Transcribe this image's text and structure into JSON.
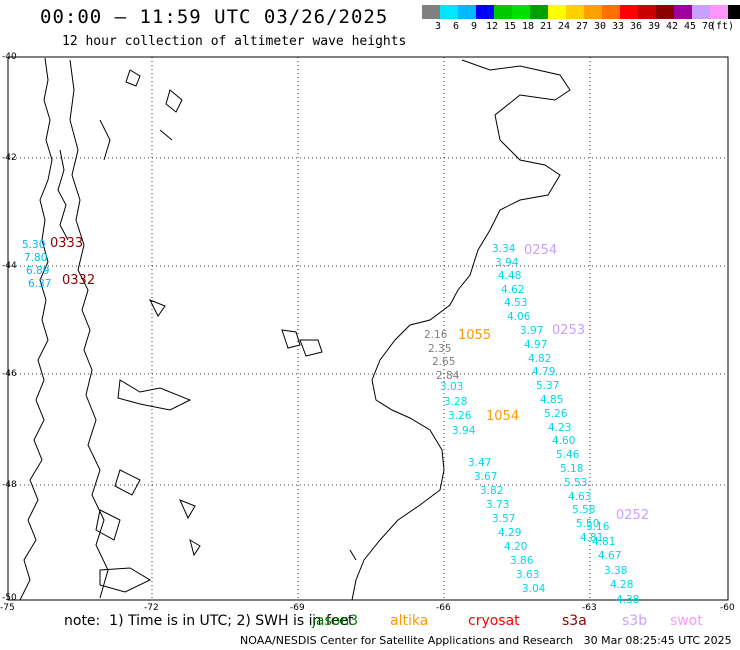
{
  "title": "00:00 – 11:59 UTC 03/26/2025",
  "subtitle": "12 hour collection of altimeter wave heights",
  "legend": {
    "colors": [
      "#808080",
      "#00e5ff",
      "#00b8ff",
      "#0000ff",
      "#00c800",
      "#00e000",
      "#00a000",
      "#ffff00",
      "#ffd000",
      "#ffa000",
      "#ff7000",
      "#ff0000",
      "#c80000",
      "#8c0000",
      "#a000a0",
      "#c8a0ff",
      "#ff96ff",
      "#000000"
    ],
    "ticks": [
      "3",
      "6",
      "9",
      "12",
      "15",
      "18",
      "21",
      "24",
      "27",
      "30",
      "33",
      "36",
      "39",
      "42",
      "45",
      "70"
    ],
    "unit": "(ft)"
  },
  "axes": {
    "lat_labels": [
      "-40",
      "-42",
      "-44",
      "-46",
      "-48",
      "-50"
    ],
    "lon_labels": [
      "-75",
      "-72",
      "-69",
      "-66",
      "-63",
      "-60"
    ]
  },
  "passes": [
    {
      "id": "0333",
      "color": "#8c0000",
      "values": [
        {
          "v": "5.30",
          "c": "#00b8ff"
        },
        {
          "v": "7.80",
          "c": "#00b8ff"
        },
        {
          "v": "6.89",
          "c": "#00b8ff"
        },
        {
          "v": "6.37",
          "c": "#00b8ff"
        }
      ]
    },
    {
      "id": "0332",
      "color": "#8c0000",
      "values": []
    },
    {
      "id": "0254",
      "color": "#c8a0ff",
      "values": [
        {
          "v": "3.34",
          "c": "#00d8e8"
        },
        {
          "v": "3.94",
          "c": "#00d8e8"
        },
        {
          "v": "4.48",
          "c": "#00d8e8"
        },
        {
          "v": "4.62",
          "c": "#00d8e8"
        },
        {
          "v": "4.53",
          "c": "#00d8e8"
        },
        {
          "v": "4.06",
          "c": "#00d8e8"
        }
      ]
    },
    {
      "id": "1055",
      "color": "#ff9900",
      "values": [
        {
          "v": "2.16",
          "c": "#808080"
        },
        {
          "v": "2.35",
          "c": "#808080"
        },
        {
          "v": "2.65",
          "c": "#808080"
        },
        {
          "v": "2.84",
          "c": "#808080"
        }
      ]
    },
    {
      "id": "0253",
      "color": "#c8a0ff",
      "values": [
        {
          "v": "3.97",
          "c": "#00d8e8"
        },
        {
          "v": "4.97",
          "c": "#00d8e8"
        },
        {
          "v": "4.82",
          "c": "#00d8e8"
        },
        {
          "v": "4.79",
          "c": "#00d8e8"
        },
        {
          "v": "5.37",
          "c": "#00d8e8"
        },
        {
          "v": "4.85",
          "c": "#00d8e8"
        },
        {
          "v": "5.26",
          "c": "#00d8e8"
        },
        {
          "v": "4.23",
          "c": "#00d8e8"
        },
        {
          "v": "4.60",
          "c": "#00d8e8"
        },
        {
          "v": "5.46",
          "c": "#00d8e8"
        },
        {
          "v": "5.18",
          "c": "#00d8e8"
        },
        {
          "v": "5.53",
          "c": "#00d8e8"
        },
        {
          "v": "4.63",
          "c": "#00d8e8"
        },
        {
          "v": "5.58",
          "c": "#00d8e8"
        },
        {
          "v": "5.50",
          "c": "#00d8e8"
        },
        {
          "v": "4.81",
          "c": "#00d8e8"
        }
      ]
    },
    {
      "id": "1054",
      "color": "#ff9900",
      "values": [
        {
          "v": "3.03",
          "c": "#00d8e8"
        },
        {
          "v": "3.28",
          "c": "#00d8e8"
        },
        {
          "v": "3.26",
          "c": "#00d8e8"
        },
        {
          "v": "3.94",
          "c": "#00d8e8"
        }
      ]
    },
    {
      "id": "0252",
      "color": "#c8a0ff",
      "values": [
        {
          "v": "5.16",
          "c": "#00d8e8"
        },
        {
          "v": "4.81",
          "c": "#00d8e8"
        },
        {
          "v": "4.67",
          "c": "#00d8e8"
        },
        {
          "v": "3.38",
          "c": "#00d8e8"
        },
        {
          "v": "4.28",
          "c": "#00d8e8"
        },
        {
          "v": "4.38",
          "c": "#00d8e8"
        }
      ]
    },
    {
      "id": "",
      "color": "#000000",
      "values": [
        {
          "v": "3.47",
          "c": "#00d8e8"
        },
        {
          "v": "3.67",
          "c": "#00d8e8"
        },
        {
          "v": "3.82",
          "c": "#00d8e8"
        },
        {
          "v": "3.73",
          "c": "#00d8e8"
        },
        {
          "v": "3.57",
          "c": "#00d8e8"
        },
        {
          "v": "4.29",
          "c": "#00d8e8"
        },
        {
          "v": "4.20",
          "c": "#00d8e8"
        },
        {
          "v": "3.86",
          "c": "#00d8e8"
        },
        {
          "v": "3.63",
          "c": "#00d8e8"
        },
        {
          "v": "3.04",
          "c": "#00d8e8"
        }
      ]
    }
  ],
  "note": "note:  1) Time is in UTC; 2) SWH is in feet",
  "satellites": [
    {
      "name": "jason3",
      "color": "#008000"
    },
    {
      "name": "altika",
      "color": "#ff9900"
    },
    {
      "name": "cryosat",
      "color": "#ff0000"
    },
    {
      "name": "s3a",
      "color": "#8c0000"
    },
    {
      "name": "s3b",
      "color": "#c8a0ff"
    },
    {
      "name": "swot",
      "color": "#ff96ff"
    }
  ],
  "footer": "NOAA/NESDIS Center for Satellite Applications and Research   30 Mar 08:25:45 UTC 2025"
}
